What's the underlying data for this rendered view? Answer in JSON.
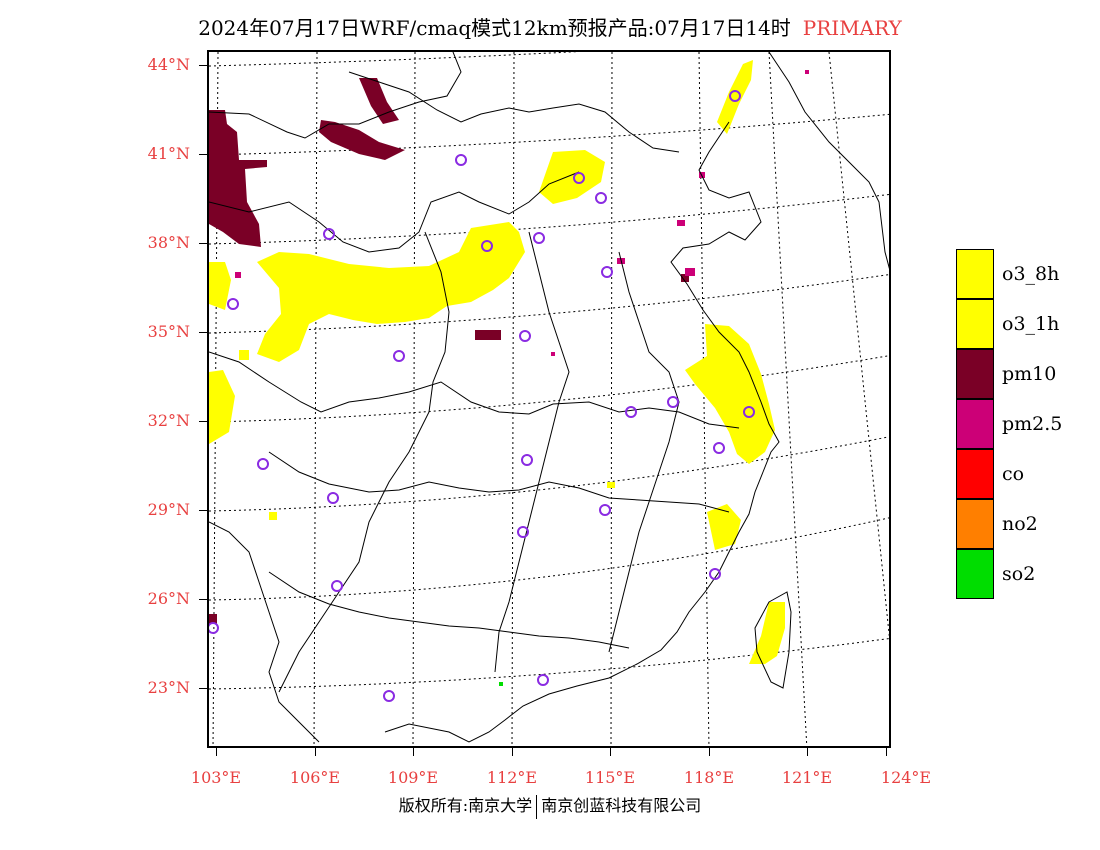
{
  "header": {
    "title": "2024年07月17日WRF/cmaq模式12km预报产品:07月17日14时",
    "pollutant_type": "PRIMARY"
  },
  "map": {
    "latitude_labels": [
      "44°N",
      "41°N",
      "38°N",
      "35°N",
      "32°N",
      "29°N",
      "26°N",
      "23°N"
    ],
    "longitude_labels": [
      "103°E",
      "106°E",
      "109°E",
      "112°E",
      "115°E",
      "118°E",
      "121°E",
      "124°E"
    ],
    "lat_range": [
      20.8,
      44.4
    ],
    "lon_range": [
      102.7,
      124.0
    ],
    "pollution_areas": [
      {
        "pollutant": "pm10",
        "description": "Inner Mongolia west"
      },
      {
        "pollutant": "o3_8h",
        "description": "Loess Plateau band"
      },
      {
        "pollutant": "o3_8h",
        "description": "Yangtze River Delta"
      },
      {
        "pollutant": "o3_8h",
        "description": "Beijing area"
      },
      {
        "pollutant": "o3_8h",
        "description": "Northeast China"
      },
      {
        "pollutant": "o3_8h",
        "description": "Zhejiang coast"
      },
      {
        "pollutant": "o3_8h",
        "description": "Taiwan"
      }
    ]
  },
  "legend": [
    {
      "label": "o3_8h",
      "color": "#ffff00"
    },
    {
      "label": "o3_1h",
      "color": "#ffff00"
    },
    {
      "label": "pm10",
      "color": "#7a0026"
    },
    {
      "label": "pm2.5",
      "color": "#cc0077"
    },
    {
      "label": "co",
      "color": "#ff0000"
    },
    {
      "label": "no2",
      "color": "#ff7f00"
    },
    {
      "label": "so2",
      "color": "#00dd00"
    }
  ],
  "footer": {
    "copyright_left": "版权所有:南京大学",
    "copyright_right": "南京创蓝科技有限公司"
  },
  "colors": {
    "axis_label": "#e84040",
    "station_marker": "#8a2be2",
    "pm10": "#7a0026",
    "o3": "#ffff00",
    "pm25": "#cc0077",
    "so2": "#00dd00"
  }
}
